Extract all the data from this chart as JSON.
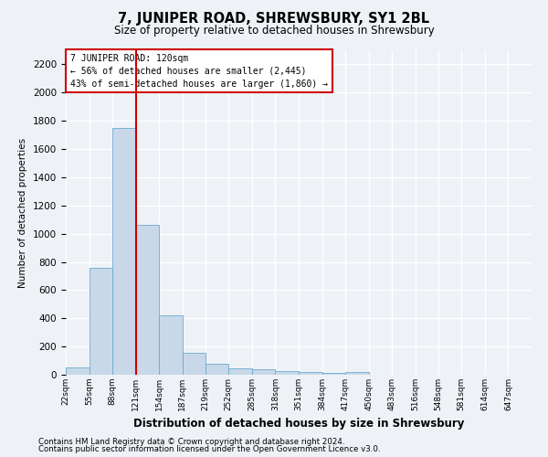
{
  "title": "7, JUNIPER ROAD, SHREWSBURY, SY1 2BL",
  "subtitle": "Size of property relative to detached houses in Shrewsbury",
  "xlabel": "Distribution of detached houses by size in Shrewsbury",
  "ylabel": "Number of detached properties",
  "annotation_line1": "7 JUNIPER ROAD: 120sqm",
  "annotation_line2": "← 56% of detached houses are smaller (2,445)",
  "annotation_line3": "43% of semi-detached houses are larger (1,860) →",
  "footer_line1": "Contains HM Land Registry data © Crown copyright and database right 2024.",
  "footer_line2": "Contains public sector information licensed under the Open Government Licence v3.0.",
  "bar_edges": [
    22,
    55,
    88,
    121,
    154,
    187,
    219,
    252,
    285,
    318,
    351,
    384,
    417,
    450,
    483,
    516,
    548,
    581,
    614,
    647,
    680
  ],
  "bar_heights": [
    50,
    760,
    1750,
    1065,
    420,
    158,
    80,
    45,
    40,
    28,
    20,
    10,
    18,
    0,
    0,
    0,
    0,
    0,
    0,
    0
  ],
  "bar_color": "#c8d8e8",
  "bar_edge_color": "#6aaad4",
  "vline_color": "#cc0000",
  "vline_x": 121,
  "annotation_box_color": "#cc0000",
  "background_color": "#eef2f7",
  "grid_color": "#ffffff",
  "ylim": [
    0,
    2300
  ],
  "yticks": [
    0,
    200,
    400,
    600,
    800,
    1000,
    1200,
    1400,
    1600,
    1800,
    2000,
    2200
  ]
}
